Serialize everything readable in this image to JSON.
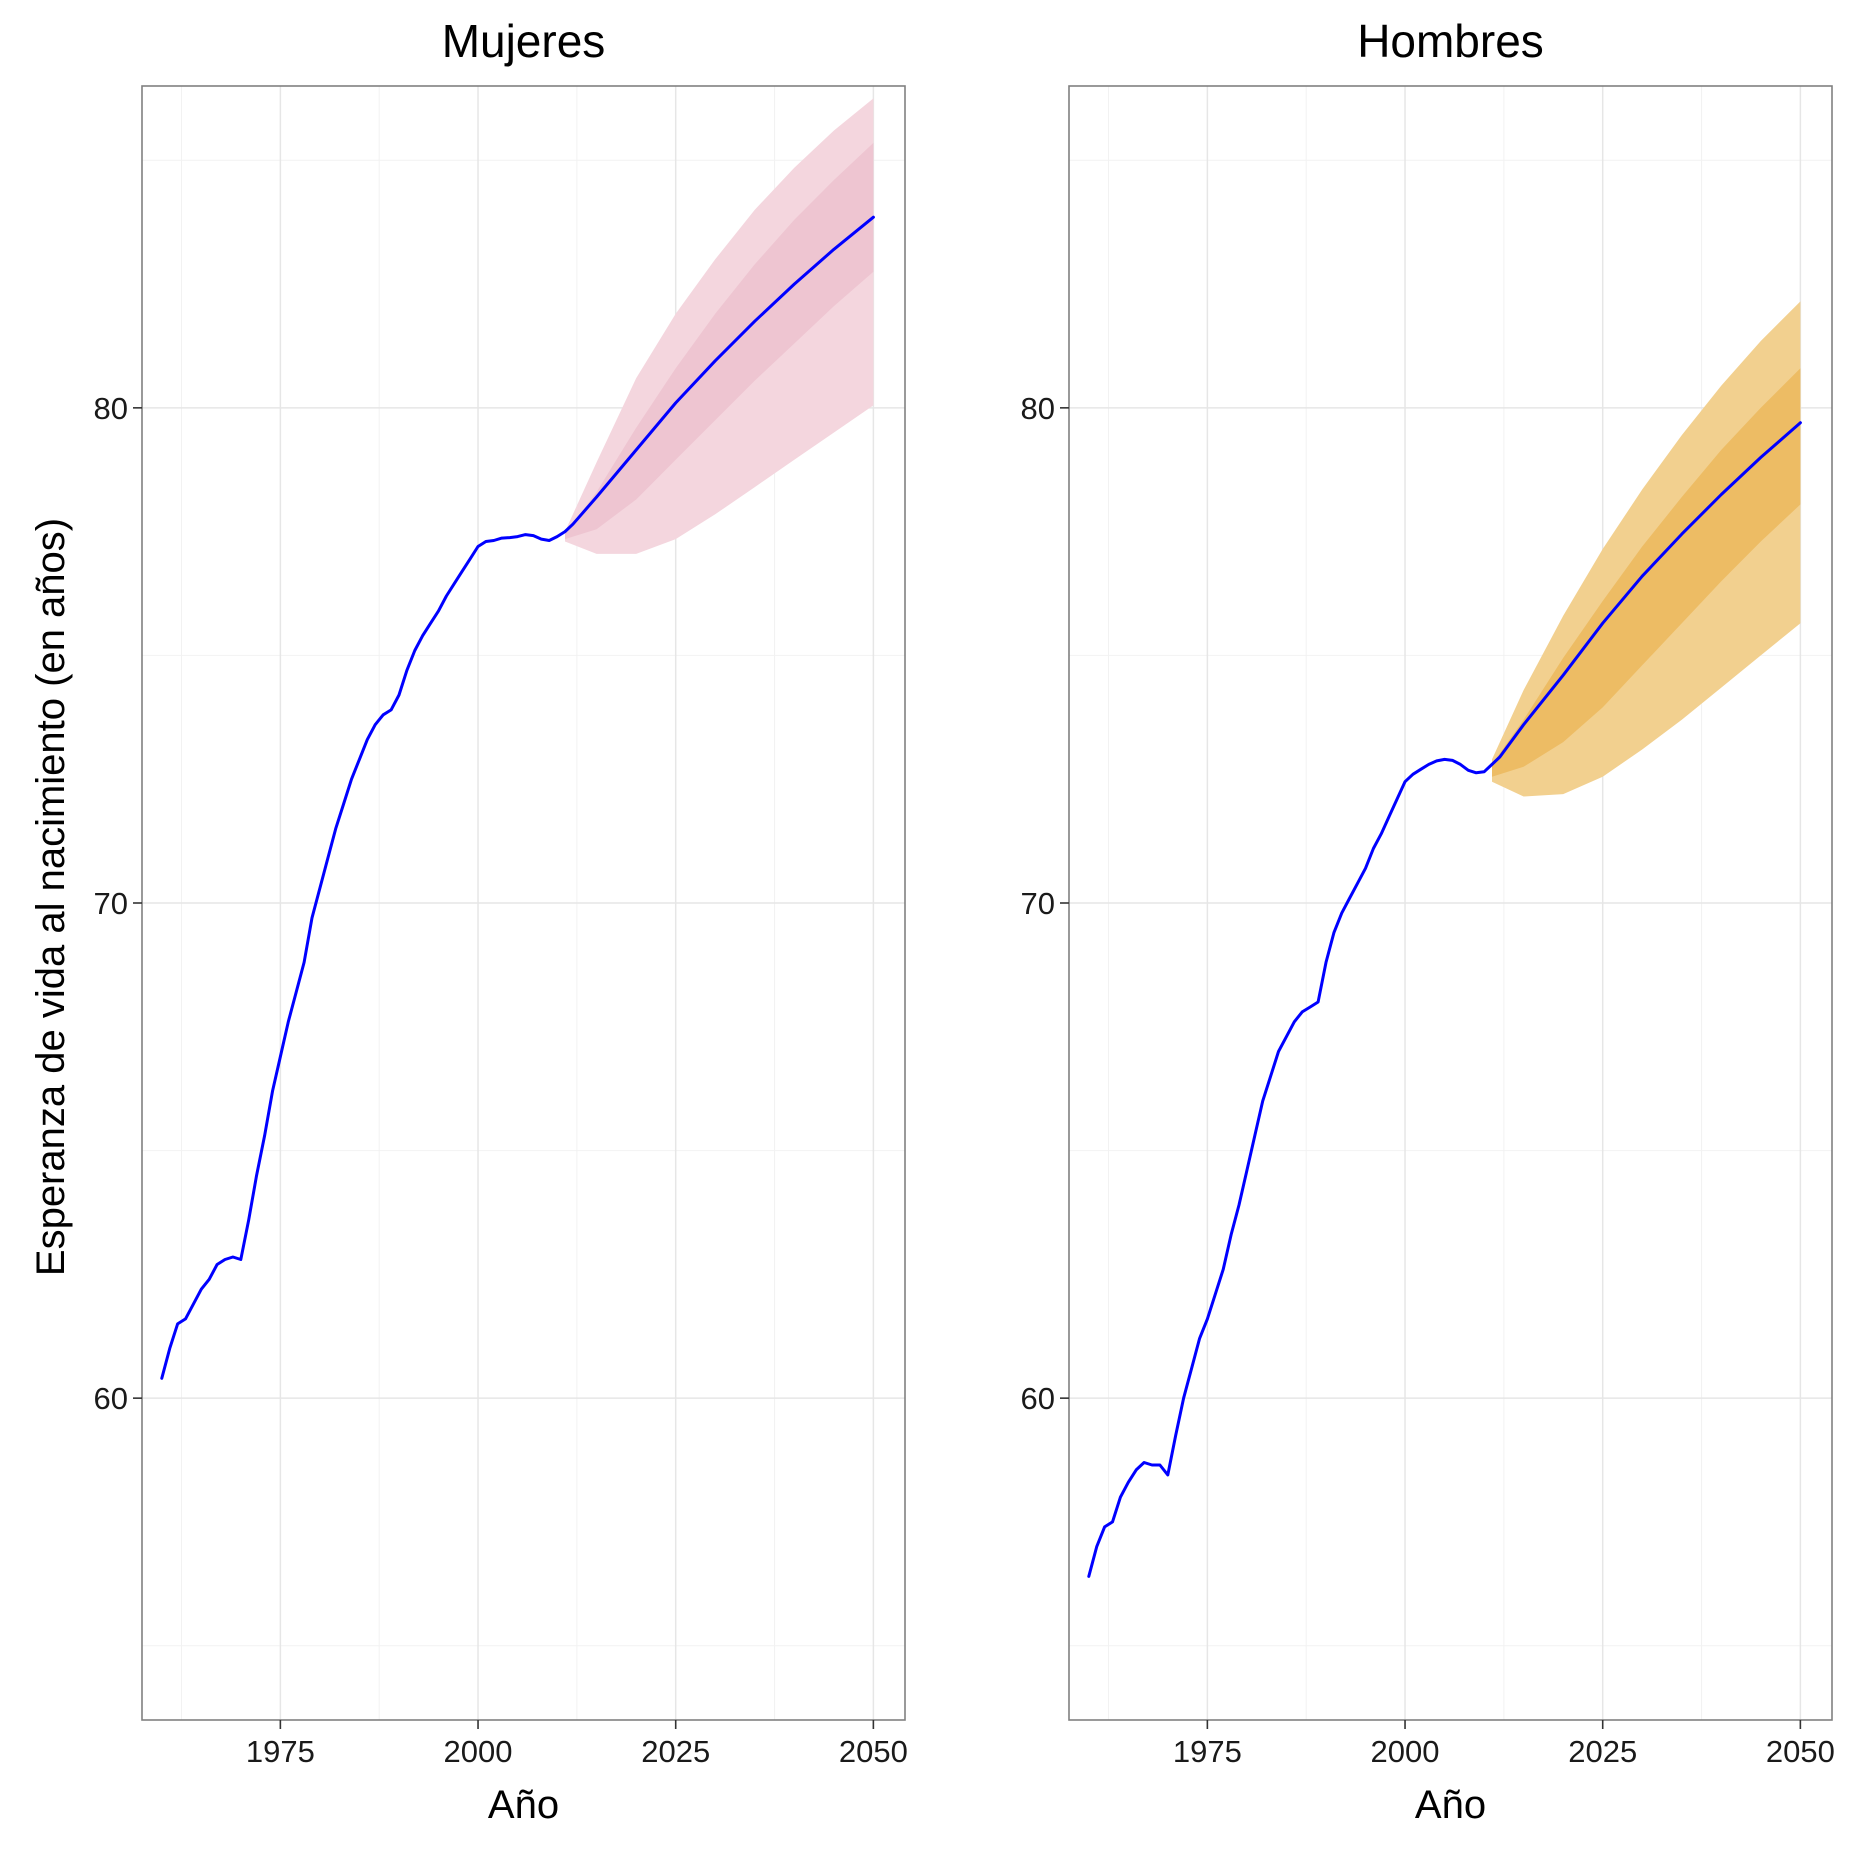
{
  "chart_data": [
    {
      "type": "line",
      "title": "Mujeres",
      "xlabel": "Año",
      "ylabel": "Esperanza de vida al nacimiento (en años)",
      "xlim": [
        1957.5,
        2054
      ],
      "ylim": [
        53.5,
        86.5
      ],
      "xticks": [
        1975,
        2000,
        2025,
        2050
      ],
      "yticks": [
        60,
        70,
        80
      ],
      "grid": true,
      "colors": {
        "line": "#0000ff",
        "band_outer": "#f4d6de",
        "band_inner": "#eec5d1"
      },
      "series": [
        {
          "x": [
            1960,
            1961,
            1962,
            1963,
            1964,
            1965,
            1966,
            1967,
            1968,
            1969,
            1970,
            1971,
            1972,
            1973,
            1974,
            1975,
            1976,
            1977,
            1978,
            1979,
            1980,
            1981,
            1982,
            1983,
            1984,
            1985,
            1986,
            1987,
            1988,
            1989,
            1990,
            1991,
            1992,
            1993,
            1994,
            1995,
            1996,
            1997,
            1998,
            1999,
            2000,
            2001,
            2002,
            2003,
            2004,
            2005,
            2006,
            2007,
            2008,
            2009,
            2010,
            2011,
            2012,
            2015,
            2020,
            2025,
            2030,
            2035,
            2040,
            2045,
            2050
          ],
          "y": [
            60.4,
            61.0,
            61.5,
            61.6,
            61.9,
            62.2,
            62.4,
            62.7,
            62.8,
            62.85,
            62.8,
            63.6,
            64.5,
            65.3,
            66.2,
            66.9,
            67.6,
            68.2,
            68.8,
            69.7,
            70.3,
            70.9,
            71.5,
            72.0,
            72.5,
            72.9,
            73.3,
            73.6,
            73.8,
            73.9,
            74.2,
            74.7,
            75.1,
            75.4,
            75.65,
            75.9,
            76.2,
            76.45,
            76.7,
            76.95,
            77.2,
            77.3,
            77.32,
            77.37,
            77.38,
            77.4,
            77.44,
            77.42,
            77.35,
            77.32,
            77.4,
            77.5,
            77.65,
            78.2,
            79.15,
            80.1,
            80.95,
            81.75,
            82.5,
            83.2,
            83.85
          ]
        }
      ],
      "bands": {
        "x": [
          2011,
          2015,
          2020,
          2025,
          2030,
          2035,
          2040,
          2045,
          2050
        ],
        "outer_upper": [
          77.5,
          78.9,
          80.6,
          81.9,
          83.0,
          84.0,
          84.85,
          85.6,
          86.25
        ],
        "outer_lower": [
          77.3,
          77.05,
          77.05,
          77.35,
          77.85,
          78.4,
          78.95,
          79.5,
          80.05
        ],
        "inner_upper": [
          77.45,
          78.3,
          79.6,
          80.8,
          81.9,
          82.9,
          83.8,
          84.6,
          85.35
        ],
        "inner_lower": [
          77.35,
          77.55,
          78.15,
          78.95,
          79.75,
          80.55,
          81.3,
          82.05,
          82.75
        ]
      }
    },
    {
      "type": "line",
      "title": "Hombres",
      "xlabel": "Año",
      "ylabel": "",
      "xlim": [
        1957.5,
        2054
      ],
      "ylim": [
        53.5,
        86.5
      ],
      "xticks": [
        1975,
        2000,
        2025,
        2050
      ],
      "yticks": [
        60,
        70,
        80
      ],
      "grid": true,
      "colors": {
        "line": "#0000ff",
        "band_outer": "#f2d08f",
        "band_inner": "#edbc64"
      },
      "series": [
        {
          "x": [
            1960,
            1961,
            1962,
            1963,
            1964,
            1965,
            1966,
            1967,
            1968,
            1969,
            1970,
            1971,
            1972,
            1973,
            1974,
            1975,
            1976,
            1977,
            1978,
            1979,
            1980,
            1981,
            1982,
            1983,
            1984,
            1985,
            1986,
            1987,
            1988,
            1989,
            1990,
            1991,
            1992,
            1993,
            1994,
            1995,
            1996,
            1997,
            1998,
            1999,
            2000,
            2001,
            2002,
            2003,
            2004,
            2005,
            2006,
            2007,
            2008,
            2009,
            2010,
            2011,
            2012,
            2015,
            2020,
            2025,
            2030,
            2035,
            2040,
            2045,
            2050
          ],
          "y": [
            56.4,
            57.0,
            57.4,
            57.5,
            58.0,
            58.3,
            58.55,
            58.7,
            58.65,
            58.65,
            58.45,
            59.25,
            60.0,
            60.6,
            61.2,
            61.6,
            62.1,
            62.6,
            63.3,
            63.9,
            64.6,
            65.3,
            66.0,
            66.5,
            67.0,
            67.3,
            67.6,
            67.8,
            67.9,
            68.0,
            68.8,
            69.4,
            69.8,
            70.1,
            70.4,
            70.7,
            71.1,
            71.4,
            71.75,
            72.1,
            72.45,
            72.6,
            72.7,
            72.8,
            72.87,
            72.9,
            72.88,
            72.8,
            72.68,
            72.63,
            72.65,
            72.8,
            72.95,
            73.6,
            74.6,
            75.65,
            76.6,
            77.45,
            78.25,
            79.0,
            79.7
          ]
        }
      ],
      "bands": {
        "x": [
          2011,
          2015,
          2020,
          2025,
          2030,
          2035,
          2040,
          2045,
          2050
        ],
        "outer_upper": [
          72.9,
          74.3,
          75.8,
          77.15,
          78.35,
          79.45,
          80.45,
          81.35,
          82.15
        ],
        "outer_lower": [
          72.45,
          72.15,
          72.2,
          72.55,
          73.1,
          73.7,
          74.35,
          75.0,
          75.65
        ],
        "inner_upper": [
          72.8,
          73.7,
          74.95,
          76.1,
          77.2,
          78.2,
          79.15,
          80.0,
          80.8
        ],
        "inner_lower": [
          72.55,
          72.75,
          73.25,
          73.95,
          74.8,
          75.65,
          76.5,
          77.3,
          78.05
        ]
      }
    }
  ]
}
